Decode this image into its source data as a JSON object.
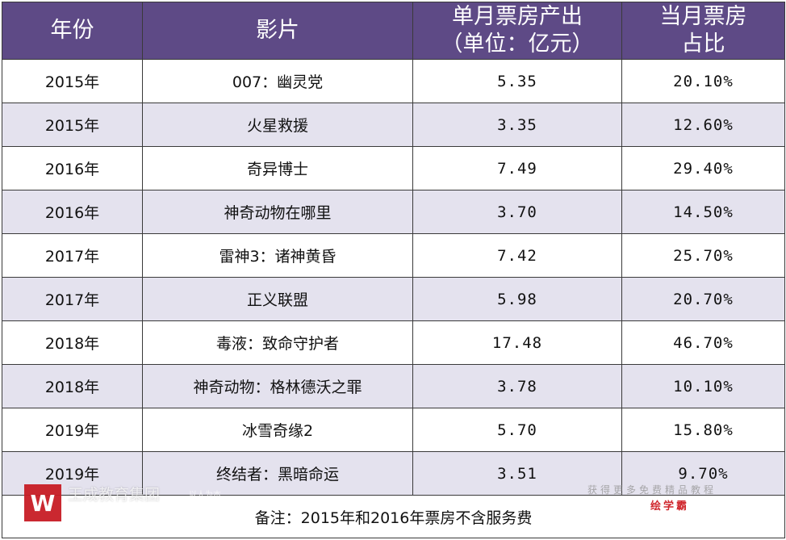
{
  "headers": [
    "年份",
    "影片",
    "单月票房产出\n（单位：亿元）",
    "当月票房\n占比"
  ],
  "rows": [
    {
      "year": "2015年",
      "film": "007：幽灵党",
      "box": "5.35",
      "share": "20.10%"
    },
    {
      "year": "2015年",
      "film": "火星救援",
      "box": "3.35",
      "share": "12.60%"
    },
    {
      "year": "2016年",
      "film": "奇异博士",
      "box": "7.49",
      "share": "29.40%"
    },
    {
      "year": "2016年",
      "film": "神奇动物在哪里",
      "box": "3.70",
      "share": "14.50%"
    },
    {
      "year": "2017年",
      "film": "雷神3：诸神黄昏",
      "box": "7.42",
      "share": "25.70%"
    },
    {
      "year": "2017年",
      "film": "正义联盟",
      "box": "5.98",
      "share": "20.70%"
    },
    {
      "year": "2018年",
      "film": "毒液：致命守护者",
      "box": "17.48",
      "share": "46.70%"
    },
    {
      "year": "2018年",
      "film": "神奇动物：格林德沃之罪",
      "box": "3.78",
      "share": "10.10%"
    },
    {
      "year": "2019年",
      "film": "冰雪奇缘2",
      "box": "5.70",
      "share": "15.80%"
    },
    {
      "year": "2019年",
      "film": "终结者：黑暗命运",
      "box": "3.51",
      "share": "9.70%"
    }
  ],
  "note": "备注：2015年和2016年票房不含服务费",
  "watermark": {
    "logo_text": "W",
    "group_name": "王成教育集团",
    "small_text": "以人为本",
    "right_text": "获得更多免费精品教程",
    "brand": "绘学霸"
  },
  "colors": {
    "header_bg": "#5e4a86",
    "stripe": "#e4e2ee",
    "brand_red": "#c81d25"
  }
}
